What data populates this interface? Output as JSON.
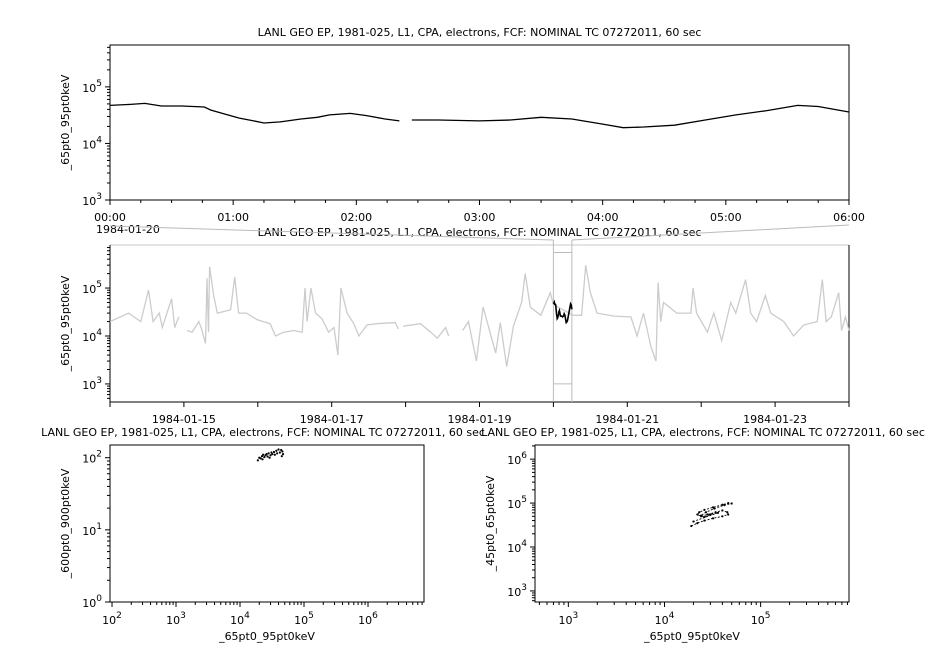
{
  "chart_data": [
    {
      "id": "top",
      "type": "line",
      "title": "LANL GEO EP, 1981-025, L1, CPA, electrons, FCF: NOMINAL TC 07272011, 60 sec",
      "ylabel": "_65pt0_95pt0keV",
      "yscale": "log",
      "ylim": [
        1000,
        550000
      ],
      "y_ticks": [
        {
          "value": 1000,
          "label": "10^3"
        },
        {
          "value": 10000,
          "label": "10^4"
        },
        {
          "value": 100000,
          "label": "10^5"
        }
      ],
      "xlim": [
        "1984-01-20T00:00",
        "1984-01-20T06:00"
      ],
      "x_ticks": [
        {
          "value": "1984-01-20T00:00",
          "label": "00:00"
        },
        {
          "value": "1984-01-20T01:00",
          "label": "01:00"
        },
        {
          "value": "1984-01-20T02:00",
          "label": "02:00"
        },
        {
          "value": "1984-01-20T03:00",
          "label": "03:00"
        },
        {
          "value": "1984-01-20T04:00",
          "label": "04:00"
        },
        {
          "value": "1984-01-20T05:00",
          "label": "05:00"
        },
        {
          "value": "1984-01-20T06:00",
          "label": "06:00"
        }
      ],
      "x_minor_step_minutes": 15,
      "x_date_label": "1984-01-20",
      "series": [
        {
          "color": "#000000",
          "points": [
            [
              "1984-01-20T00:00",
              47000
            ],
            [
              "1984-01-20T00:10",
              49000
            ],
            [
              "1984-01-20T00:17",
              51000
            ],
            [
              "1984-01-20T00:25",
              46000
            ],
            [
              "1984-01-20T00:35",
              46000
            ],
            [
              "1984-01-20T00:46",
              44000
            ],
            [
              "1984-01-20T00:49",
              39000
            ],
            [
              "1984-01-20T00:56",
              33000
            ],
            [
              "1984-01-20T01:03",
              28000
            ],
            [
              "1984-01-20T01:10",
              25000
            ],
            [
              "1984-01-20T01:15",
              23000
            ],
            [
              "1984-01-20T01:23",
              24000
            ],
            [
              "1984-01-20T01:33",
              27000
            ],
            [
              "1984-01-20T01:41",
              29000
            ],
            [
              "1984-01-20T01:47",
              32000
            ],
            [
              "1984-01-20T01:57",
              34000
            ],
            [
              "1984-01-20T02:05",
              31000
            ],
            [
              "1984-01-20T02:14",
              27000
            ],
            [
              "1984-01-20T02:21",
              25000
            ],
            [
              "1984-01-20T02:23",
              null
            ],
            [
              "1984-01-20T02:27",
              26000
            ],
            [
              "1984-01-20T02:40",
              26000
            ],
            [
              "1984-01-20T03:00",
              25000
            ],
            [
              "1984-01-20T03:15",
              26000
            ],
            [
              "1984-01-20T03:30",
              29000
            ],
            [
              "1984-01-20T03:45",
              27000
            ],
            [
              "1984-01-20T04:00",
              22000
            ],
            [
              "1984-01-20T04:10",
              19000
            ],
            [
              "1984-01-20T04:20",
              19500
            ],
            [
              "1984-01-20T04:35",
              21000
            ],
            [
              "1984-01-20T04:50",
              26000
            ],
            [
              "1984-01-20T05:05",
              32000
            ],
            [
              "1984-01-20T05:20",
              38000
            ],
            [
              "1984-01-20T05:35",
              47000
            ],
            [
              "1984-01-20T05:45",
              45000
            ],
            [
              "1984-01-20T06:00",
              36000
            ]
          ]
        }
      ]
    },
    {
      "id": "overview",
      "type": "line",
      "title": "LANL GEO EP, 1981-025, L1, CPA, electrons, FCF: NOMINAL TC 07272011, 60 sec",
      "ylabel": "_65pt0_95pt0keV",
      "yscale": "log",
      "ylim": [
        420,
        790000
      ],
      "y_ticks": [
        {
          "value": 1000,
          "label": "10^3"
        },
        {
          "value": 10000,
          "label": "10^4"
        },
        {
          "value": 100000,
          "label": "10^5"
        }
      ],
      "xlim": [
        "1984-01-14T00:00",
        "1984-01-24T00:00"
      ],
      "x_ticks": [
        {
          "value": "1984-01-15T00:00",
          "label": "1984-01-15"
        },
        {
          "value": "1984-01-17T00:00",
          "label": "1984-01-17"
        },
        {
          "value": "1984-01-19T00:00",
          "label": "1984-01-19"
        },
        {
          "value": "1984-01-21T00:00",
          "label": "1984-01-21"
        },
        {
          "value": "1984-01-23T00:00",
          "label": "1984-01-23"
        }
      ],
      "x_minor_step_minutes": 1440,
      "highlight": {
        "xlim": [
          "1984-01-20T00:00",
          "1984-01-20T06:00"
        ],
        "ylim": [
          1000,
          550000
        ],
        "color": "#000000"
      },
      "series": [
        {
          "color": "#cccccc",
          "points": [
            [
              "1984-01-14T00:00",
              20000
            ],
            [
              "1984-01-14T06:00",
              30000
            ],
            [
              "1984-01-14T10:00",
              20000
            ],
            [
              "1984-01-14T12:30",
              90000
            ],
            [
              "1984-01-14T14:00",
              20000
            ],
            [
              "1984-01-14T16:00",
              30000
            ],
            [
              "1984-01-14T17:00",
              15000
            ],
            [
              "1984-01-14T20:00",
              60000
            ],
            [
              "1984-01-14T21:00",
              15000
            ],
            [
              "1984-01-14T22:20",
              25000
            ],
            [
              "1984-01-14T23:30",
              null
            ],
            [
              "1984-01-15T01:00",
              13000
            ],
            [
              "1984-01-15T02:40",
              12000
            ],
            [
              "1984-01-15T04:50",
              20000
            ],
            [
              "1984-01-15T05:45",
              14000
            ],
            [
              "1984-01-15T07:00",
              7000
            ],
            [
              "1984-01-15T07:30",
              160000
            ],
            [
              "1984-01-15T08:00",
              12000
            ],
            [
              "1984-01-15T08:20",
              280000
            ],
            [
              "1984-01-15T09:40",
              70000
            ],
            [
              "1984-01-15T10:50",
              30000
            ],
            [
              "1984-01-15T12:40",
              32000
            ],
            [
              "1984-01-15T15:10",
              35000
            ],
            [
              "1984-01-15T16:30",
              170000
            ],
            [
              "1984-01-15T17:45",
              30000
            ],
            [
              "1984-01-15T20:20",
              30000
            ],
            [
              "1984-01-15T23:45",
              22000
            ],
            [
              "1984-01-16T04:00",
              18000
            ],
            [
              "1984-01-16T05:45",
              10000
            ],
            [
              "1984-01-16T08:20",
              12000
            ],
            [
              "1984-01-16T11:45",
              13000
            ],
            [
              "1984-01-16T14:25",
              12000
            ],
            [
              "1984-01-16T15:20",
              100000
            ],
            [
              "1984-01-16T16:00",
              20000
            ],
            [
              "1984-01-16T17:15",
              100000
            ],
            [
              "1984-01-16T18:45",
              30000
            ],
            [
              "1984-01-16T20:50",
              23000
            ],
            [
              "1984-01-16T23:00",
              12000
            ],
            [
              "1984-01-17T00:45",
              15000
            ],
            [
              "1984-01-17T02:00",
              4000
            ],
            [
              "1984-01-17T03:00",
              100000
            ],
            [
              "1984-01-17T05:00",
              30000
            ],
            [
              "1984-01-17T07:10",
              18000
            ],
            [
              "1984-01-17T08:50",
              10000
            ],
            [
              "1984-01-17T11:30",
              17000
            ],
            [
              "1984-01-17T14:40",
              18000
            ],
            [
              "1984-01-17T20:40",
              19000
            ],
            [
              "1984-01-17T21:40",
              14000
            ],
            [
              "1984-01-17T22:20",
              null
            ],
            [
              "1984-01-17T23:15",
              16000
            ],
            [
              "1984-01-18T04:50",
              18000
            ],
            [
              "1984-01-18T08:10",
              12000
            ],
            [
              "1984-01-18T10:20",
              9000
            ],
            [
              "1984-01-18T13:00",
              15000
            ],
            [
              "1984-01-18T14:00",
              10000
            ],
            [
              "1984-01-18T15:40",
              null
            ],
            [
              "1984-01-18T18:30",
              13000
            ],
            [
              "1984-01-18T20:25",
              20000
            ],
            [
              "1984-01-18T23:00",
              3000
            ],
            [
              "1984-01-19T01:10",
              40000
            ],
            [
              "1984-01-19T05:15",
              4400
            ],
            [
              "1984-01-19T06:45",
              19000
            ],
            [
              "1984-01-19T08:50",
              2300
            ],
            [
              "1984-01-19T11:00",
              16000
            ],
            [
              "1984-01-19T13:40",
              50000
            ],
            [
              "1984-01-19T14:50",
              200000
            ],
            [
              "1984-01-19T16:30",
              40000
            ],
            [
              "1984-01-19T19:55",
              27000
            ],
            [
              "1984-01-19T23:00",
              80000
            ],
            [
              "1984-01-20T00:00",
              45000
            ],
            [
              "1984-01-20T06:30",
              27000
            ],
            [
              "1984-01-20T09:10",
              27000
            ],
            [
              "1984-01-20T10:30",
              300000
            ],
            [
              "1984-01-20T12:00",
              80000
            ],
            [
              "1984-01-20T14:10",
              30000
            ],
            [
              "1984-01-20T19:40",
              26000
            ],
            [
              "1984-01-21T01:10",
              25000
            ],
            [
              "1984-01-21T03:10",
              10000
            ],
            [
              "1984-01-21T05:15",
              30000
            ],
            [
              "1984-01-21T07:40",
              6000
            ],
            [
              "1984-01-21T09:20",
              3000
            ],
            [
              "1984-01-21T10:00",
              130000
            ],
            [
              "1984-01-21T10:50",
              20000
            ],
            [
              "1984-01-21T11:45",
              50000
            ],
            [
              "1984-01-21T16:05",
              30000
            ],
            [
              "1984-01-21T20:40",
              30000
            ],
            [
              "1984-01-21T21:20",
              100000
            ],
            [
              "1984-01-21T22:30",
              30000
            ],
            [
              "1984-01-22T02:00",
              12000
            ],
            [
              "1984-01-22T04:05",
              30000
            ],
            [
              "1984-01-22T06:40",
              8000
            ],
            [
              "1984-01-22T09:35",
              50000
            ],
            [
              "1984-01-22T11:15",
              30000
            ],
            [
              "1984-01-22T14:25",
              150000
            ],
            [
              "1984-01-22T16:05",
              30000
            ],
            [
              "1984-01-22T18:00",
              20000
            ],
            [
              "1984-01-22T20:50",
              70000
            ],
            [
              "1984-01-22T22:35",
              30000
            ],
            [
              "1984-01-23T02:50",
              20000
            ],
            [
              "1984-01-23T06:00",
              10000
            ],
            [
              "1984-01-23T09:20",
              17000
            ],
            [
              "1984-01-23T13:40",
              20000
            ],
            [
              "1984-01-23T15:20",
              150000
            ],
            [
              "1984-01-23T16:35",
              20000
            ],
            [
              "1984-01-23T18:15",
              25000
            ],
            [
              "1984-01-23T20:40",
              80000
            ],
            [
              "1984-01-23T21:35",
              13000
            ],
            [
              "1984-01-23T22:50",
              25000
            ],
            [
              "1984-01-24T00:00",
              13000
            ]
          ]
        }
      ]
    },
    {
      "id": "scatter-left",
      "type": "scatter",
      "title": "LANL GEO EP, 1981-025, L1, CPA, electrons, FCF: NOMINAL TC 07272011, 60 sec",
      "xlabel": "_65pt0_95pt0keV",
      "ylabel": "_600pt0_900pt0keV",
      "xscale": "log",
      "yscale": "log",
      "xlim": [
        93,
        7500000
      ],
      "ylim": [
        1,
        150
      ],
      "x_ticks": [
        {
          "value": 100,
          "label": "10^2"
        },
        {
          "value": 1000,
          "label": "10^3"
        },
        {
          "value": 10000,
          "label": "10^4"
        },
        {
          "value": 100000,
          "label": "10^5"
        },
        {
          "value": 1000000,
          "label": "10^6"
        }
      ],
      "y_ticks": [
        {
          "value": 1,
          "label": "10^0"
        },
        {
          "value": 10,
          "label": "10^1"
        },
        {
          "value": 100,
          "label": "10^2"
        }
      ],
      "color": "#000000",
      "points": [
        [
          19000,
          92
        ],
        [
          20000,
          100
        ],
        [
          21000,
          98
        ],
        [
          22000,
          105
        ],
        [
          23000,
          110
        ],
        [
          24000,
          102
        ],
        [
          25000,
          108
        ],
        [
          26000,
          112
        ],
        [
          27000,
          104
        ],
        [
          28000,
          115
        ],
        [
          30000,
          108
        ],
        [
          31000,
          118
        ],
        [
          32000,
          112
        ],
        [
          34000,
          120
        ],
        [
          35000,
          110
        ],
        [
          37000,
          125
        ],
        [
          38000,
          115
        ],
        [
          40000,
          130
        ],
        [
          42000,
          118
        ],
        [
          44000,
          128
        ],
        [
          45000,
          105
        ],
        [
          46000,
          122
        ],
        [
          47000,
          112
        ],
        [
          22500,
          95
        ],
        [
          29000,
          100
        ]
      ]
    },
    {
      "id": "scatter-right",
      "type": "scatter",
      "title": "LANL GEO EP, 1981-025, L1, CPA, electrons, FCF: NOMINAL TC 07272011, 60 sec",
      "xlabel": "_65pt0_95pt0keV",
      "ylabel": "_45pt0_65pt0keV",
      "xscale": "log",
      "yscale": "log",
      "xlim": [
        450,
        830000
      ],
      "ylim": [
        560,
        2100000
      ],
      "x_ticks": [
        {
          "value": 1000,
          "label": "10^3"
        },
        {
          "value": 10000,
          "label": "10^4"
        },
        {
          "value": 100000,
          "label": "10^5"
        }
      ],
      "y_ticks": [
        {
          "value": 1000,
          "label": "10^3"
        },
        {
          "value": 10000,
          "label": "10^4"
        },
        {
          "value": 100000,
          "label": "10^5"
        },
        {
          "value": 1000000,
          "label": "10^6"
        }
      ],
      "color": "#000000",
      "points": [
        [
          19000,
          30000
        ],
        [
          22000,
          35000
        ],
        [
          26000,
          40000
        ],
        [
          32000,
          45000
        ],
        [
          40000,
          50000
        ],
        [
          46000,
          55000
        ],
        [
          45000,
          62000
        ],
        [
          40000,
          68000
        ],
        [
          34000,
          62000
        ],
        [
          28000,
          55000
        ],
        [
          24000,
          50000
        ],
        [
          22000,
          55000
        ],
        [
          23000,
          62000
        ],
        [
          26000,
          70000
        ],
        [
          32000,
          80000
        ],
        [
          40000,
          92000
        ],
        [
          46000,
          100000
        ],
        [
          50000,
          98000
        ],
        [
          42000,
          90000
        ],
        [
          33000,
          75000
        ],
        [
          27000,
          62000
        ],
        [
          24000,
          52000
        ],
        [
          26000,
          48000
        ],
        [
          30000,
          55000
        ],
        [
          36000,
          60000
        ],
        [
          20000,
          38000
        ]
      ]
    }
  ]
}
